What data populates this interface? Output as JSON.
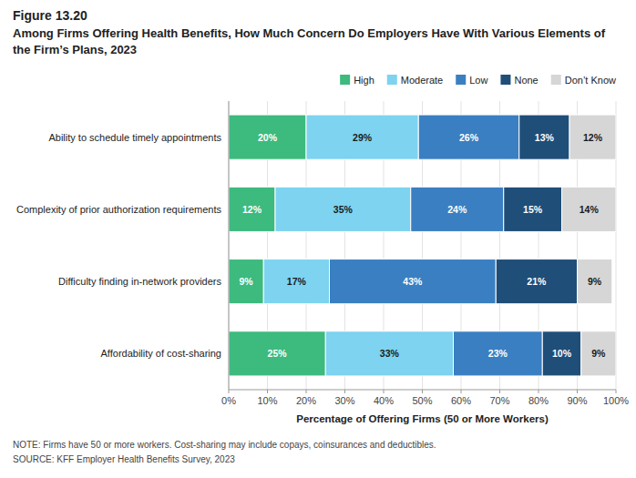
{
  "chart_data": {
    "type": "bar",
    "orientation": "horizontal",
    "stacked": true,
    "title": "Figure 13.20",
    "subtitle": "Among Firms Offering Health Benefits, How Much Concern Do Employers Have With Various Elements of the Firm’s Plans, 2023",
    "categories": [
      "Ability to schedule timely appointments",
      "Complexity of prior authorization requirements",
      "Difficulty finding in-network providers",
      "Affordability of cost-sharing"
    ],
    "series": [
      {
        "name": "High",
        "color": "#3dba7e",
        "values": [
          20,
          12,
          9,
          25
        ],
        "value_labels": [
          "20%",
          "12%",
          "9%",
          "25%"
        ]
      },
      {
        "name": "Moderate",
        "color": "#7dd3f0",
        "values": [
          29,
          35,
          17,
          33
        ],
        "value_labels": [
          "29%",
          "35%",
          "17%",
          "33%"
        ]
      },
      {
        "name": "Low",
        "color": "#3a7fc1",
        "values": [
          26,
          24,
          43,
          23
        ],
        "value_labels": [
          "26%",
          "24%",
          "43%",
          "23%"
        ]
      },
      {
        "name": "None",
        "color": "#1f4e79",
        "values": [
          13,
          15,
          21,
          10
        ],
        "value_labels": [
          "13%",
          "15%",
          "21%",
          "10%"
        ]
      },
      {
        "name": "Don’t Know",
        "color": "#d6d6d6",
        "values": [
          12,
          14,
          9,
          9
        ],
        "value_labels": [
          "12%",
          "14%",
          "9%",
          "9%"
        ]
      }
    ],
    "xlabel": "Percentage of Offering Firms (50 or More Workers)",
    "xlim": [
      0,
      100
    ],
    "xticks": [
      {
        "value": 0,
        "label": "0%"
      },
      {
        "value": 10,
        "label": "10%"
      },
      {
        "value": 20,
        "label": "20%"
      },
      {
        "value": 30,
        "label": "30%"
      },
      {
        "value": 40,
        "label": "40%"
      },
      {
        "value": 50,
        "label": "50%"
      },
      {
        "value": 60,
        "label": "60%"
      },
      {
        "value": 70,
        "label": "70%"
      },
      {
        "value": 80,
        "label": "80%"
      },
      {
        "value": 90,
        "label": "90%"
      },
      {
        "value": 100,
        "label": "100%"
      }
    ],
    "grid": true,
    "legend": "top",
    "data_labels": true,
    "annotations": [
      "NOTE: Firms have 50 or more workers. Cost-sharing may include copays, coinsurances and deductibles.",
      "SOURCE: KFF Employer Health Benefits Survey, 2023"
    ]
  }
}
